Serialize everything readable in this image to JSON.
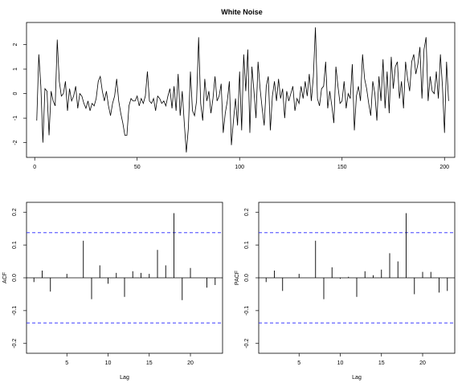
{
  "chart_data": [
    {
      "type": "line",
      "title": "White Noise",
      "xlabel": "",
      "ylabel": "",
      "xlim": [
        -4,
        205
      ],
      "ylim": [
        -2.6,
        2.9
      ],
      "xticks": [
        0,
        50,
        100,
        150,
        200
      ],
      "yticks": [
        -2,
        -1,
        0,
        1,
        2
      ],
      "grid": false,
      "color": "#000000",
      "x_start": 1,
      "values": [
        -1.1,
        1.6,
        0.3,
        -2.0,
        0.2,
        0.1,
        -1.7,
        0.1,
        -0.3,
        -0.5,
        2.2,
        0.5,
        -0.1,
        0.0,
        0.5,
        -0.7,
        0.2,
        -0.3,
        -0.1,
        0.3,
        -0.6,
        0.0,
        -0.1,
        -0.4,
        -0.6,
        -0.3,
        -0.7,
        -0.4,
        -0.5,
        -0.2,
        0.5,
        0.7,
        0.1,
        -0.3,
        0.1,
        -0.5,
        -0.9,
        -0.4,
        -0.1,
        0.6,
        -0.3,
        -0.8,
        -1.2,
        -1.7,
        -1.7,
        -0.5,
        -0.2,
        -0.3,
        -0.3,
        -0.1,
        -0.5,
        -0.2,
        -0.4,
        -0.1,
        0.9,
        -0.3,
        -0.4,
        -0.2,
        -0.7,
        -0.1,
        -0.2,
        -0.4,
        -0.3,
        -0.5,
        -0.1,
        0.2,
        -0.6,
        0.3,
        -0.7,
        0.8,
        -0.9,
        0.1,
        -1.2,
        -2.4,
        -1.4,
        0.9,
        -0.7,
        -0.9,
        -0.3,
        2.3,
        -0.4,
        -1.1,
        0.6,
        -0.3,
        0.1,
        -0.8,
        -0.2,
        0.7,
        -0.3,
        -0.1,
        0.4,
        -1.6,
        -0.8,
        -0.3,
        0.5,
        -2.1,
        -1.1,
        -0.2,
        -1.3,
        0.9,
        -1.5,
        1.6,
        0.1,
        1.8,
        -1.6,
        1.1,
        0.1,
        -1.0,
        1.3,
        0.2,
        -0.6,
        -1.3,
        0.3,
        0.7,
        -1.5,
        -0.1,
        0.5,
        -0.3,
        0.6,
        -0.2,
        0.2,
        -1.0,
        0.1,
        -0.3,
        0.0,
        0.3,
        -0.7,
        -0.2,
        -0.4,
        0.3,
        -0.2,
        0.5,
        -0.1,
        0.8,
        -0.3,
        0.7,
        2.7,
        -0.2,
        -0.5,
        0.2,
        0.3,
        1.3,
        -0.6,
        0.1,
        -0.5,
        -1.2,
        1.1,
        0.3,
        -0.4,
        -0.3,
        0.5,
        -0.6,
        0.0,
        -0.2,
        1.2,
        -1.5,
        -0.1,
        0.3,
        -0.3,
        1.6,
        0.6,
        0.2,
        -0.4,
        -0.9,
        0.5,
        0.0,
        -1.1,
        0.7,
        -0.3,
        1.4,
        -0.6,
        0.9,
        -0.8,
        1.5,
        0.2,
        1.1,
        1.3,
        -0.2,
        0.5,
        -0.6,
        1.3,
        0.6,
        0.1,
        1.3,
        1.6,
        0.8,
        1.2,
        1.9,
        -0.2,
        1.8,
        2.3,
        -0.3,
        0.7,
        0.1,
        0.0,
        0.9,
        -0.2,
        1.6,
        0.3,
        -1.6,
        1.3,
        -0.3
      ]
    },
    {
      "type": "bar",
      "ylabel": "ACF",
      "xlabel": "Lag",
      "xlim": [
        0.1,
        23.9
      ],
      "ylim": [
        -0.23,
        0.23
      ],
      "xticks": [
        5,
        10,
        15,
        20
      ],
      "yticks": [
        -0.2,
        -0.1,
        0.0,
        0.1,
        0.2
      ],
      "confidence_bound": 0.1375,
      "bound_color": "#2222ff",
      "lags": [
        1,
        2,
        3,
        4,
        5,
        6,
        7,
        8,
        9,
        10,
        11,
        12,
        13,
        14,
        15,
        16,
        17,
        18,
        19,
        20,
        21,
        22,
        23
      ],
      "values": [
        -0.013,
        0.022,
        -0.042,
        0.0,
        0.012,
        0.0,
        0.113,
        -0.065,
        0.038,
        -0.018,
        0.015,
        -0.058,
        0.02,
        0.015,
        0.012,
        0.085,
        0.038,
        0.197,
        -0.068,
        0.03,
        0.0,
        -0.03,
        -0.022
      ]
    },
    {
      "type": "bar",
      "ylabel": "PACF",
      "xlabel": "Lag",
      "xlim": [
        0.1,
        23.9
      ],
      "ylim": [
        -0.23,
        0.23
      ],
      "xticks": [
        5,
        10,
        15,
        20
      ],
      "yticks": [
        -0.2,
        -0.1,
        0.0,
        0.1,
        0.2
      ],
      "confidence_bound": 0.1375,
      "bound_color": "#2222ff",
      "lags": [
        1,
        2,
        3,
        4,
        5,
        6,
        7,
        8,
        9,
        10,
        11,
        12,
        13,
        14,
        15,
        16,
        17,
        18,
        19,
        20,
        21,
        22,
        23
      ],
      "values": [
        -0.013,
        0.022,
        -0.04,
        0.0,
        0.012,
        0.0,
        0.113,
        -0.065,
        0.032,
        -0.003,
        0.003,
        -0.058,
        0.02,
        0.008,
        0.025,
        0.075,
        0.05,
        0.197,
        -0.05,
        0.018,
        0.018,
        -0.045,
        -0.04
      ]
    }
  ]
}
